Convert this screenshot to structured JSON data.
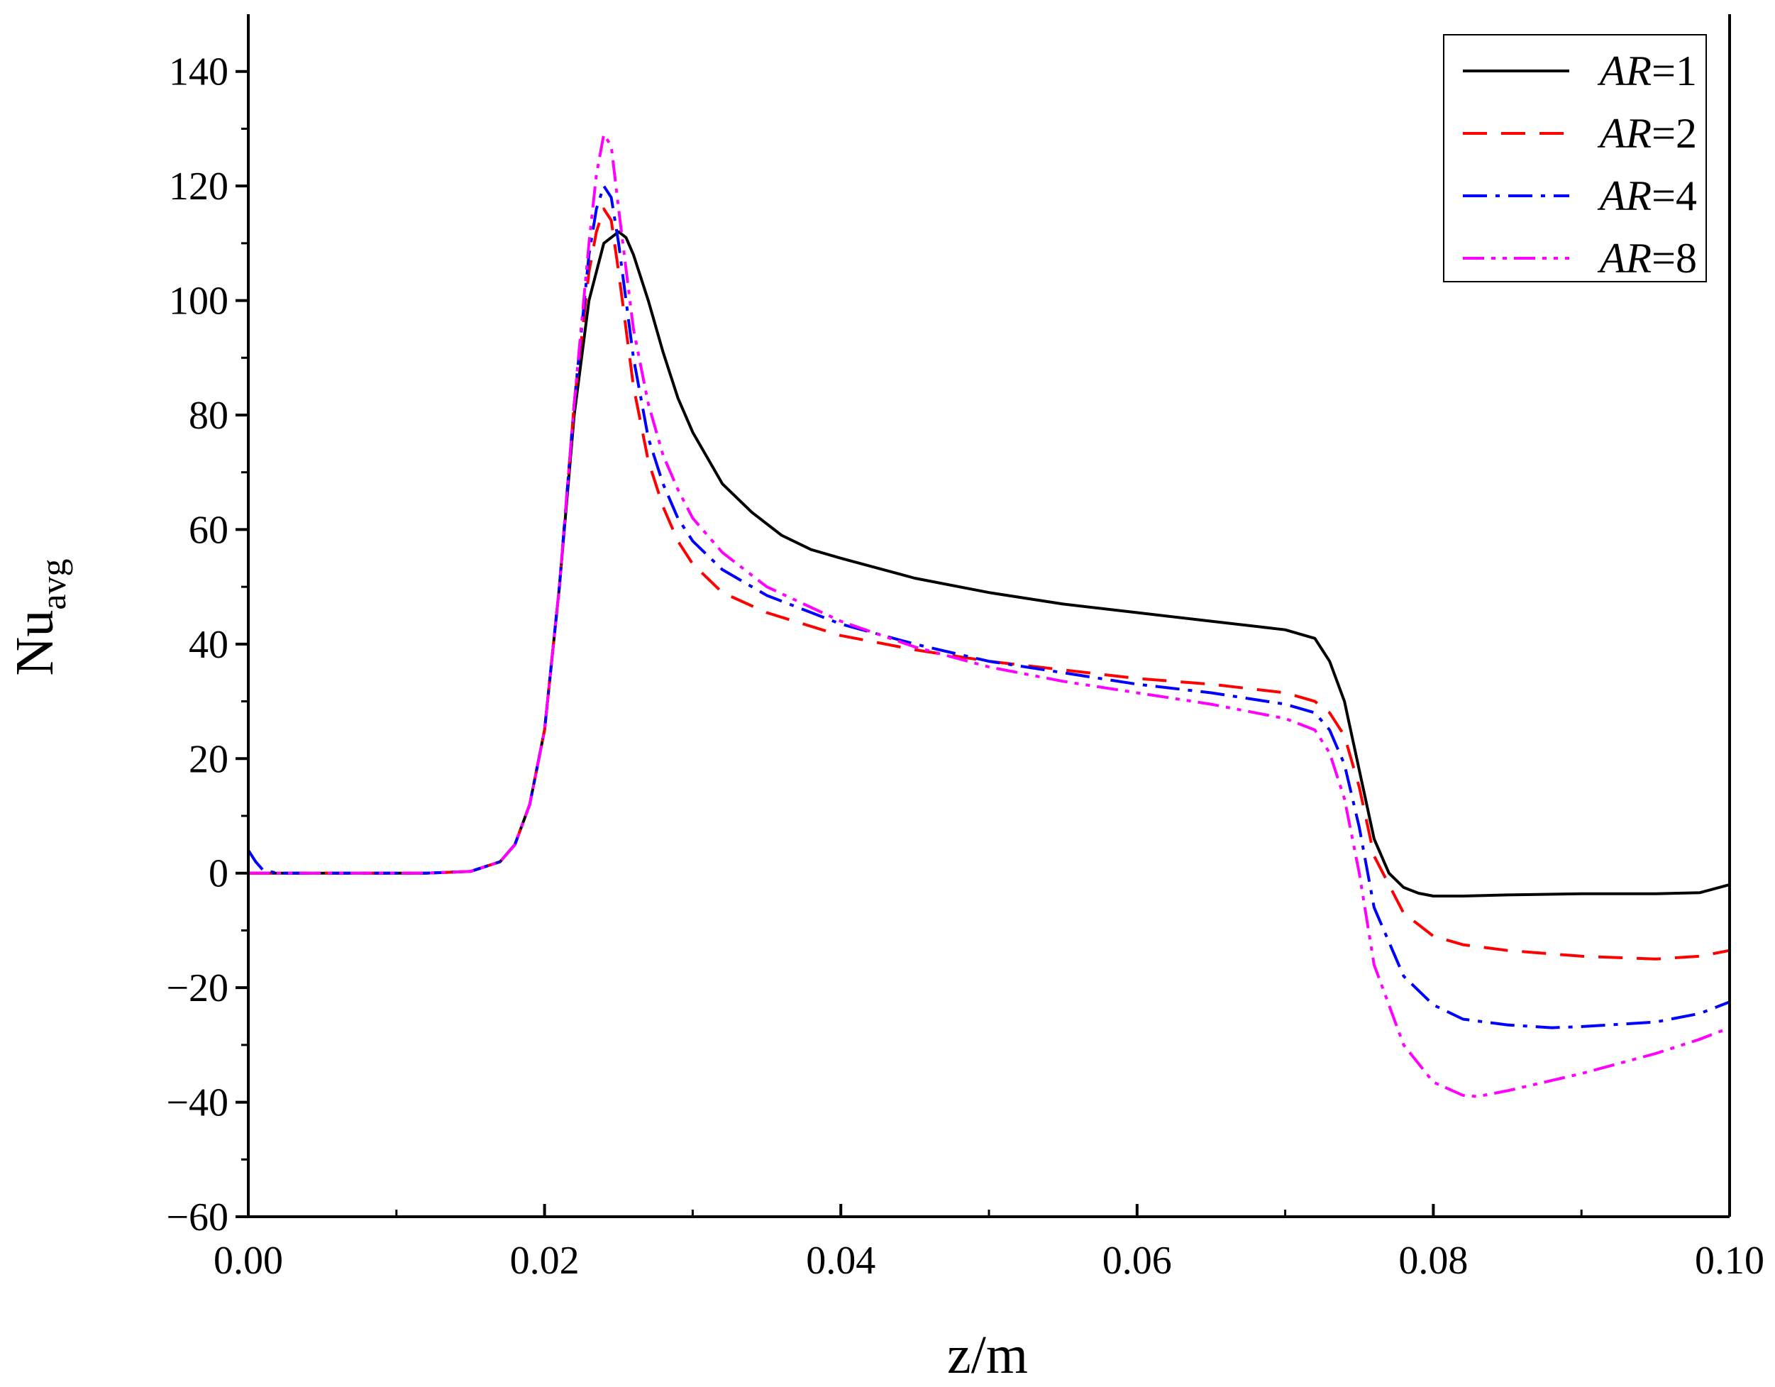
{
  "chart_data": {
    "type": "line",
    "xlabel": "z/m",
    "ylabel": {
      "main": "Nu",
      "sub": "avg"
    },
    "xlim": [
      0.0,
      0.1
    ],
    "ylim": [
      -60,
      150
    ],
    "xticks": [
      0.0,
      0.02,
      0.04,
      0.06,
      0.08,
      0.1
    ],
    "xtick_labels": [
      "0.00",
      "0.02",
      "0.04",
      "0.06",
      "0.08",
      "0.10"
    ],
    "yticks": [
      -60,
      -40,
      -20,
      0,
      20,
      40,
      60,
      80,
      100,
      120,
      140
    ],
    "ytick_labels": [
      "−60",
      "−40",
      "−20",
      "0",
      "20",
      "40",
      "60",
      "80",
      "100",
      "120",
      "140"
    ],
    "legend_position": "top-right",
    "series": [
      {
        "name": "AR=1",
        "italic": "AR",
        "suffix": "=1",
        "color": "#000000",
        "dash": "solid",
        "x": [
          0.0,
          0.012,
          0.015,
          0.017,
          0.018,
          0.019,
          0.02,
          0.021,
          0.022,
          0.023,
          0.024,
          0.025,
          0.0255,
          0.026,
          0.027,
          0.028,
          0.029,
          0.03,
          0.032,
          0.034,
          0.036,
          0.038,
          0.04,
          0.045,
          0.05,
          0.055,
          0.06,
          0.065,
          0.07,
          0.072,
          0.073,
          0.074,
          0.075,
          0.076,
          0.077,
          0.078,
          0.079,
          0.08,
          0.082,
          0.085,
          0.09,
          0.095,
          0.098,
          0.1
        ],
        "y": [
          0,
          0,
          0.3,
          2,
          5,
          12,
          25,
          50,
          80,
          100,
          110,
          112,
          111,
          108,
          100,
          91,
          83,
          77,
          68,
          63,
          59,
          56.5,
          55,
          51.5,
          49,
          47,
          45.5,
          44,
          42.5,
          41,
          37,
          30,
          18,
          6,
          0,
          -2.5,
          -3.5,
          -4,
          -4,
          -3.8,
          -3.6,
          -3.6,
          -3.4,
          -2
        ]
      },
      {
        "name": "AR=2",
        "italic": "AR",
        "suffix": "=2",
        "color": "#ff0000",
        "dash": "dashed",
        "x": [
          0.0,
          0.012,
          0.015,
          0.017,
          0.018,
          0.019,
          0.02,
          0.021,
          0.022,
          0.023,
          0.0235,
          0.024,
          0.0245,
          0.025,
          0.026,
          0.027,
          0.028,
          0.029,
          0.03,
          0.032,
          0.035,
          0.04,
          0.045,
          0.05,
          0.055,
          0.06,
          0.065,
          0.07,
          0.072,
          0.073,
          0.074,
          0.075,
          0.076,
          0.078,
          0.08,
          0.082,
          0.085,
          0.09,
          0.095,
          0.098,
          0.1
        ],
        "y": [
          0,
          0,
          0.3,
          2,
          5,
          12,
          25,
          50,
          82,
          105,
          112,
          116,
          114,
          105,
          85,
          72,
          64,
          58,
          54,
          49,
          45.5,
          41.5,
          39,
          37,
          35.5,
          34,
          33,
          31.5,
          30,
          28,
          24,
          15,
          3,
          -7,
          -11,
          -12.5,
          -13.5,
          -14.5,
          -15,
          -14.5,
          -13.5
        ]
      },
      {
        "name": "AR=4",
        "italic": "AR",
        "suffix": "=4",
        "color": "#0000ff",
        "dash": "dashdot",
        "x": [
          0.0,
          0.0005,
          0.001,
          0.002,
          0.012,
          0.015,
          0.017,
          0.018,
          0.019,
          0.02,
          0.021,
          0.022,
          0.023,
          0.0235,
          0.024,
          0.0245,
          0.025,
          0.026,
          0.027,
          0.028,
          0.029,
          0.03,
          0.032,
          0.035,
          0.04,
          0.045,
          0.05,
          0.055,
          0.06,
          0.065,
          0.07,
          0.072,
          0.073,
          0.074,
          0.075,
          0.076,
          0.078,
          0.08,
          0.082,
          0.085,
          0.088,
          0.09,
          0.095,
          0.098,
          0.1
        ],
        "y": [
          4,
          2,
          0.5,
          0,
          0,
          0.3,
          2,
          5,
          12,
          25,
          50,
          82,
          108,
          116,
          120,
          118,
          110,
          90,
          76,
          68,
          62,
          58,
          53,
          48.5,
          43.5,
          40,
          37,
          35,
          33,
          31.5,
          29.5,
          28,
          25,
          19,
          8,
          -6,
          -18,
          -23,
          -25.5,
          -26.5,
          -27,
          -26.8,
          -26,
          -24.5,
          -22.5
        ]
      },
      {
        "name": "AR=8",
        "italic": "AR",
        "suffix": "=8",
        "color": "#ff00ff",
        "dash": "dashdotdot",
        "x": [
          0.0,
          0.012,
          0.015,
          0.017,
          0.018,
          0.019,
          0.02,
          0.021,
          0.022,
          0.023,
          0.0235,
          0.024,
          0.0245,
          0.025,
          0.026,
          0.027,
          0.028,
          0.029,
          0.03,
          0.032,
          0.035,
          0.04,
          0.045,
          0.05,
          0.055,
          0.06,
          0.065,
          0.07,
          0.072,
          0.073,
          0.074,
          0.075,
          0.076,
          0.078,
          0.08,
          0.082,
          0.083,
          0.085,
          0.09,
          0.095,
          0.098,
          0.1
        ],
        "y": [
          0,
          0,
          0.3,
          2,
          5,
          12,
          25,
          50,
          82,
          110,
          122,
          129,
          127,
          116,
          95,
          82,
          73,
          67,
          62,
          56,
          50,
          44,
          39.5,
          36,
          33.5,
          31.5,
          29.5,
          27,
          25,
          21,
          13,
          0,
          -16,
          -30,
          -36.5,
          -38.8,
          -39,
          -38,
          -35,
          -31.5,
          -29,
          -27
        ]
      }
    ]
  }
}
